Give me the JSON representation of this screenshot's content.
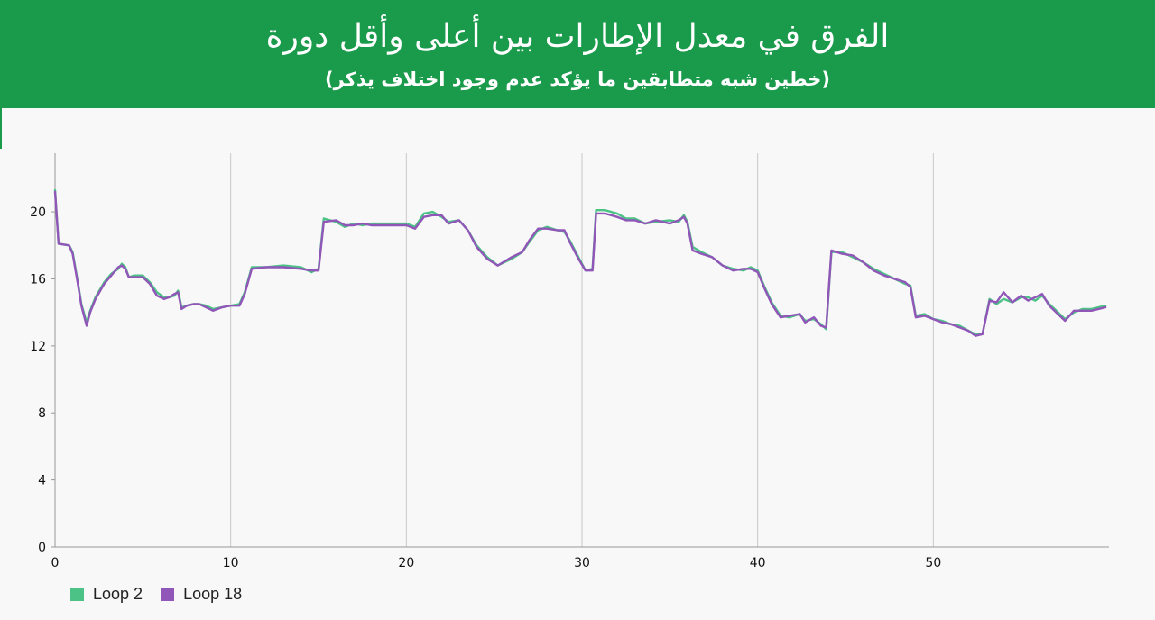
{
  "header": {
    "title": "الفرق في معدل الإطارات بين أعلى وأقل دورة",
    "subtitle": "(خطين شبه متطابقين ما يؤكد عدم وجود اختلاف يذكر)"
  },
  "colors": {
    "header_bg": "#1a9a4b",
    "loop2": "#4cc286",
    "loop18": "#9056b8"
  },
  "chart_data": {
    "type": "line",
    "title": "الفرق في معدل الإطارات بين أعلى وأقل دورة",
    "subtitle": "(خطين شبه متطابقين ما يؤكد عدم وجود اختلاف يذكر)",
    "xlabel": "",
    "ylabel": "",
    "xlim": [
      0,
      60
    ],
    "ylim": [
      0,
      23.5
    ],
    "x_ticks": [
      0,
      10,
      20,
      30,
      40,
      50
    ],
    "y_ticks": [
      0,
      4,
      8,
      12,
      16,
      20
    ],
    "vertical_grid": true,
    "legend_position": "bottom-left",
    "series": [
      {
        "name": "Loop 2",
        "color": "#4cc286",
        "points": [
          [
            0,
            21.3
          ],
          [
            0.2,
            18.1
          ],
          [
            0.8,
            18.0
          ],
          [
            1.0,
            17.6
          ],
          [
            1.3,
            15.8
          ],
          [
            1.5,
            14.5
          ],
          [
            1.8,
            13.4
          ],
          [
            2.0,
            14.1
          ],
          [
            2.3,
            14.9
          ],
          [
            2.8,
            15.8
          ],
          [
            3.2,
            16.3
          ],
          [
            3.6,
            16.6
          ],
          [
            3.8,
            16.9
          ],
          [
            4.0,
            16.7
          ],
          [
            4.2,
            16.1
          ],
          [
            4.5,
            16.2
          ],
          [
            5.0,
            16.2
          ],
          [
            5.4,
            15.8
          ],
          [
            5.8,
            15.2
          ],
          [
            6.2,
            14.9
          ],
          [
            6.5,
            14.9
          ],
          [
            6.8,
            15.0
          ],
          [
            7.0,
            15.3
          ],
          [
            7.2,
            14.3
          ],
          [
            7.5,
            14.4
          ],
          [
            7.9,
            14.5
          ],
          [
            8.2,
            14.5
          ],
          [
            8.6,
            14.4
          ],
          [
            9.0,
            14.2
          ],
          [
            9.5,
            14.3
          ],
          [
            10.0,
            14.4
          ],
          [
            10.5,
            14.5
          ],
          [
            10.8,
            15.2
          ],
          [
            11.2,
            16.7
          ],
          [
            12.0,
            16.7
          ],
          [
            13.0,
            16.8
          ],
          [
            14.0,
            16.7
          ],
          [
            14.6,
            16.4
          ],
          [
            15.0,
            16.6
          ],
          [
            15.3,
            19.6
          ],
          [
            16.0,
            19.4
          ],
          [
            16.5,
            19.1
          ],
          [
            17.0,
            19.3
          ],
          [
            17.5,
            19.2
          ],
          [
            18.0,
            19.3
          ],
          [
            19.0,
            19.3
          ],
          [
            20.0,
            19.3
          ],
          [
            20.5,
            19.1
          ],
          [
            21.0,
            19.9
          ],
          [
            21.5,
            20.0
          ],
          [
            22.0,
            19.7
          ],
          [
            22.4,
            19.4
          ],
          [
            23.0,
            19.5
          ],
          [
            23.5,
            18.9
          ],
          [
            24.0,
            18.0
          ],
          [
            24.6,
            17.3
          ],
          [
            25.2,
            16.8
          ],
          [
            26.0,
            17.2
          ],
          [
            26.6,
            17.6
          ],
          [
            27.0,
            18.2
          ],
          [
            27.5,
            18.9
          ],
          [
            28.0,
            19.1
          ],
          [
            28.6,
            18.9
          ],
          [
            29.0,
            18.8
          ],
          [
            29.3,
            18.3
          ],
          [
            29.8,
            17.3
          ],
          [
            30.2,
            16.5
          ],
          [
            30.6,
            16.6
          ],
          [
            30.8,
            20.1
          ],
          [
            31.3,
            20.1
          ],
          [
            32.0,
            19.9
          ],
          [
            32.5,
            19.6
          ],
          [
            33.0,
            19.6
          ],
          [
            33.6,
            19.3
          ],
          [
            34.2,
            19.4
          ],
          [
            35.0,
            19.5
          ],
          [
            35.5,
            19.4
          ],
          [
            35.8,
            19.8
          ],
          [
            36.0,
            19.4
          ],
          [
            36.3,
            17.9
          ],
          [
            36.8,
            17.6
          ],
          [
            37.4,
            17.3
          ],
          [
            38.0,
            16.8
          ],
          [
            38.6,
            16.6
          ],
          [
            39.2,
            16.5
          ],
          [
            39.6,
            16.7
          ],
          [
            40.0,
            16.5
          ],
          [
            40.4,
            15.5
          ],
          [
            40.8,
            14.6
          ],
          [
            41.3,
            13.8
          ],
          [
            41.8,
            13.7
          ],
          [
            42.4,
            13.9
          ],
          [
            42.7,
            13.5
          ],
          [
            43.2,
            13.6
          ],
          [
            43.6,
            13.3
          ],
          [
            43.9,
            13.0
          ],
          [
            44.2,
            17.6
          ],
          [
            44.8,
            17.6
          ],
          [
            45.4,
            17.3
          ],
          [
            46.0,
            17.0
          ],
          [
            46.6,
            16.6
          ],
          [
            47.2,
            16.3
          ],
          [
            47.8,
            16.0
          ],
          [
            48.4,
            15.7
          ],
          [
            48.7,
            15.6
          ],
          [
            49.0,
            13.8
          ],
          [
            49.5,
            13.9
          ],
          [
            50.0,
            13.6
          ],
          [
            50.5,
            13.5
          ],
          [
            51.0,
            13.3
          ],
          [
            51.5,
            13.2
          ],
          [
            52.0,
            12.9
          ],
          [
            52.4,
            12.7
          ],
          [
            52.8,
            12.7
          ],
          [
            53.2,
            14.8
          ],
          [
            53.6,
            14.5
          ],
          [
            54.0,
            14.8
          ],
          [
            54.5,
            14.6
          ],
          [
            55.0,
            14.9
          ],
          [
            55.4,
            14.9
          ],
          [
            55.8,
            14.7
          ],
          [
            56.2,
            15.0
          ],
          [
            56.6,
            14.5
          ],
          [
            57.0,
            14.1
          ],
          [
            57.5,
            13.6
          ],
          [
            58.0,
            14.0
          ],
          [
            58.5,
            14.2
          ],
          [
            59.0,
            14.2
          ],
          [
            59.4,
            14.3
          ],
          [
            59.8,
            14.4
          ]
        ]
      },
      {
        "name": "Loop 18",
        "color": "#9056b8",
        "points": [
          [
            0,
            21.2
          ],
          [
            0.2,
            18.1
          ],
          [
            0.8,
            18.0
          ],
          [
            1.0,
            17.5
          ],
          [
            1.3,
            15.7
          ],
          [
            1.5,
            14.4
          ],
          [
            1.8,
            13.2
          ],
          [
            2.0,
            14.0
          ],
          [
            2.3,
            14.8
          ],
          [
            2.8,
            15.7
          ],
          [
            3.2,
            16.2
          ],
          [
            3.6,
            16.7
          ],
          [
            3.8,
            16.8
          ],
          [
            4.0,
            16.6
          ],
          [
            4.2,
            16.1
          ],
          [
            4.5,
            16.1
          ],
          [
            5.0,
            16.1
          ],
          [
            5.4,
            15.7
          ],
          [
            5.8,
            15.0
          ],
          [
            6.2,
            14.8
          ],
          [
            6.5,
            14.9
          ],
          [
            6.8,
            15.1
          ],
          [
            7.0,
            15.2
          ],
          [
            7.2,
            14.2
          ],
          [
            7.5,
            14.4
          ],
          [
            7.9,
            14.5
          ],
          [
            8.2,
            14.5
          ],
          [
            8.6,
            14.3
          ],
          [
            9.0,
            14.1
          ],
          [
            9.5,
            14.3
          ],
          [
            10.0,
            14.4
          ],
          [
            10.5,
            14.4
          ],
          [
            10.8,
            15.1
          ],
          [
            11.2,
            16.6
          ],
          [
            12.0,
            16.7
          ],
          [
            13.0,
            16.7
          ],
          [
            14.0,
            16.6
          ],
          [
            14.6,
            16.5
          ],
          [
            15.0,
            16.5
          ],
          [
            15.3,
            19.4
          ],
          [
            16.0,
            19.5
          ],
          [
            16.5,
            19.2
          ],
          [
            17.0,
            19.2
          ],
          [
            17.5,
            19.3
          ],
          [
            18.0,
            19.2
          ],
          [
            19.0,
            19.2
          ],
          [
            20.0,
            19.2
          ],
          [
            20.5,
            19.0
          ],
          [
            21.0,
            19.7
          ],
          [
            21.5,
            19.8
          ],
          [
            22.0,
            19.8
          ],
          [
            22.4,
            19.3
          ],
          [
            23.0,
            19.5
          ],
          [
            23.5,
            18.9
          ],
          [
            24.0,
            17.9
          ],
          [
            24.6,
            17.2
          ],
          [
            25.2,
            16.8
          ],
          [
            26.0,
            17.3
          ],
          [
            26.6,
            17.6
          ],
          [
            27.0,
            18.3
          ],
          [
            27.5,
            19.0
          ],
          [
            28.0,
            19.0
          ],
          [
            28.6,
            18.9
          ],
          [
            29.0,
            18.9
          ],
          [
            29.3,
            18.2
          ],
          [
            29.8,
            17.2
          ],
          [
            30.2,
            16.5
          ],
          [
            30.6,
            16.5
          ],
          [
            30.8,
            19.9
          ],
          [
            31.3,
            19.9
          ],
          [
            32.0,
            19.7
          ],
          [
            32.5,
            19.5
          ],
          [
            33.0,
            19.5
          ],
          [
            33.6,
            19.3
          ],
          [
            34.2,
            19.5
          ],
          [
            35.0,
            19.3
          ],
          [
            35.5,
            19.5
          ],
          [
            35.8,
            19.7
          ],
          [
            36.0,
            19.3
          ],
          [
            36.3,
            17.7
          ],
          [
            36.8,
            17.5
          ],
          [
            37.4,
            17.3
          ],
          [
            38.0,
            16.8
          ],
          [
            38.6,
            16.5
          ],
          [
            39.2,
            16.6
          ],
          [
            39.6,
            16.6
          ],
          [
            40.0,
            16.4
          ],
          [
            40.4,
            15.4
          ],
          [
            40.8,
            14.5
          ],
          [
            41.3,
            13.7
          ],
          [
            41.8,
            13.8
          ],
          [
            42.4,
            13.9
          ],
          [
            42.7,
            13.4
          ],
          [
            43.2,
            13.7
          ],
          [
            43.6,
            13.2
          ],
          [
            43.9,
            13.1
          ],
          [
            44.2,
            17.7
          ],
          [
            44.8,
            17.5
          ],
          [
            45.4,
            17.4
          ],
          [
            46.0,
            17.0
          ],
          [
            46.6,
            16.5
          ],
          [
            47.2,
            16.2
          ],
          [
            47.8,
            16.0
          ],
          [
            48.4,
            15.8
          ],
          [
            48.7,
            15.5
          ],
          [
            49.0,
            13.7
          ],
          [
            49.5,
            13.8
          ],
          [
            50.0,
            13.6
          ],
          [
            50.5,
            13.4
          ],
          [
            51.0,
            13.3
          ],
          [
            51.5,
            13.1
          ],
          [
            52.0,
            12.9
          ],
          [
            52.4,
            12.6
          ],
          [
            52.8,
            12.7
          ],
          [
            53.2,
            14.7
          ],
          [
            53.6,
            14.6
          ],
          [
            54.0,
            15.2
          ],
          [
            54.5,
            14.6
          ],
          [
            55.0,
            15.0
          ],
          [
            55.4,
            14.7
          ],
          [
            55.8,
            14.9
          ],
          [
            56.2,
            15.1
          ],
          [
            56.6,
            14.4
          ],
          [
            57.0,
            14.0
          ],
          [
            57.5,
            13.5
          ],
          [
            58.0,
            14.1
          ],
          [
            58.5,
            14.1
          ],
          [
            59.0,
            14.1
          ],
          [
            59.4,
            14.2
          ],
          [
            59.8,
            14.3
          ]
        ]
      }
    ]
  }
}
